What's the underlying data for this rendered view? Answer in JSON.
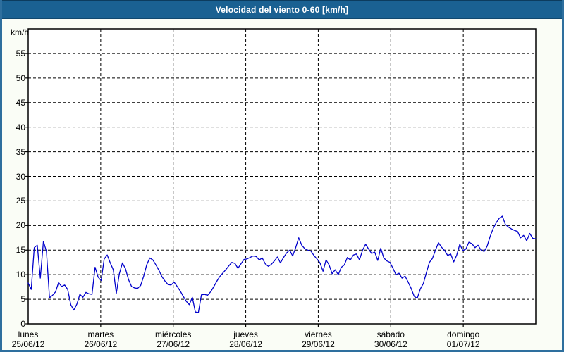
{
  "window": {
    "title": "Velocidad del viento 0-60 [km/h]"
  },
  "colors": {
    "titlebar_bg": "#1a6192",
    "frame_border": "#2e6f9e",
    "plot_background": "#ffffff",
    "grid_color": "#000000",
    "series_color": "#0000cb",
    "text_color": "#000000"
  },
  "chart_data": {
    "type": "line",
    "title": "Velocidad del viento 0-60 [km/h]",
    "ylabel": "km/h",
    "xlabel": "",
    "ylim": [
      0,
      60
    ],
    "y_ticks": [
      0,
      5,
      10,
      15,
      20,
      25,
      30,
      35,
      40,
      45,
      50,
      55
    ],
    "grid": "dashed",
    "legend_position": "none",
    "x_days": [
      {
        "label": "lunes",
        "date": "25/06/12"
      },
      {
        "label": "martes",
        "date": "26/06/12"
      },
      {
        "label": "miércoles",
        "date": "27/06/12"
      },
      {
        "label": "jueves",
        "date": "28/06/12"
      },
      {
        "label": "viernes",
        "date": "29/06/12"
      },
      {
        "label": "sábado",
        "date": "30/06/12"
      },
      {
        "label": "domingo",
        "date": "01/07/12"
      }
    ],
    "points_per_day": 24,
    "series": [
      {
        "name": "Velocidad del viento [km/h]",
        "values": [
          8.3,
          7.0,
          15.5,
          16.0,
          9.3,
          16.8,
          14.7,
          5.3,
          5.8,
          6.5,
          8.4,
          7.6,
          7.9,
          7.0,
          3.9,
          2.8,
          4.0,
          6.0,
          5.4,
          6.4,
          6.1,
          6.0,
          11.5,
          9.5,
          8.8,
          13.2,
          14.0,
          12.4,
          11.0,
          6.2,
          10.2,
          12.4,
          11.2,
          9.0,
          7.6,
          7.3,
          7.2,
          7.8,
          9.7,
          12.0,
          13.4,
          13.0,
          12.0,
          10.9,
          9.6,
          8.7,
          8.0,
          7.9,
          8.5,
          7.6,
          6.7,
          5.6,
          4.6,
          3.9,
          5.4,
          2.4,
          2.3,
          5.9,
          6.0,
          5.8,
          6.5,
          7.5,
          8.6,
          9.6,
          10.3,
          11.0,
          11.8,
          12.5,
          12.3,
          11.3,
          12.2,
          13.1,
          13.2,
          13.5,
          13.8,
          13.7,
          13.0,
          13.4,
          12.2,
          11.7,
          12.1,
          12.8,
          13.6,
          12.4,
          13.5,
          14.4,
          15.0,
          13.8,
          15.5,
          17.5,
          16.0,
          15.3,
          15.0,
          14.8,
          13.9,
          13.2,
          12.4,
          10.7,
          13.0,
          12.0,
          10.2,
          11.0,
          10.0,
          11.5,
          12.0,
          13.5,
          13.0,
          14.0,
          14.2,
          13.0,
          15.0,
          16.2,
          15.2,
          14.3,
          14.6,
          12.9,
          15.4,
          13.4,
          12.8,
          12.5,
          11.3,
          10.0,
          10.3,
          9.3,
          9.7,
          8.5,
          7.2,
          5.6,
          5.2,
          7.1,
          8.2,
          10.4,
          12.5,
          13.3,
          15.0,
          16.5,
          15.6,
          14.9,
          13.9,
          14.2,
          12.6,
          14.0,
          16.2,
          14.9,
          15.2,
          16.6,
          16.3,
          15.5,
          16.0,
          15.0,
          14.7,
          15.8,
          17.8,
          19.4,
          20.6,
          21.5,
          21.9,
          20.2,
          19.7,
          19.3,
          19.0,
          18.8,
          17.5,
          18.0,
          16.9,
          18.4,
          17.4,
          17.3
        ]
      }
    ]
  }
}
